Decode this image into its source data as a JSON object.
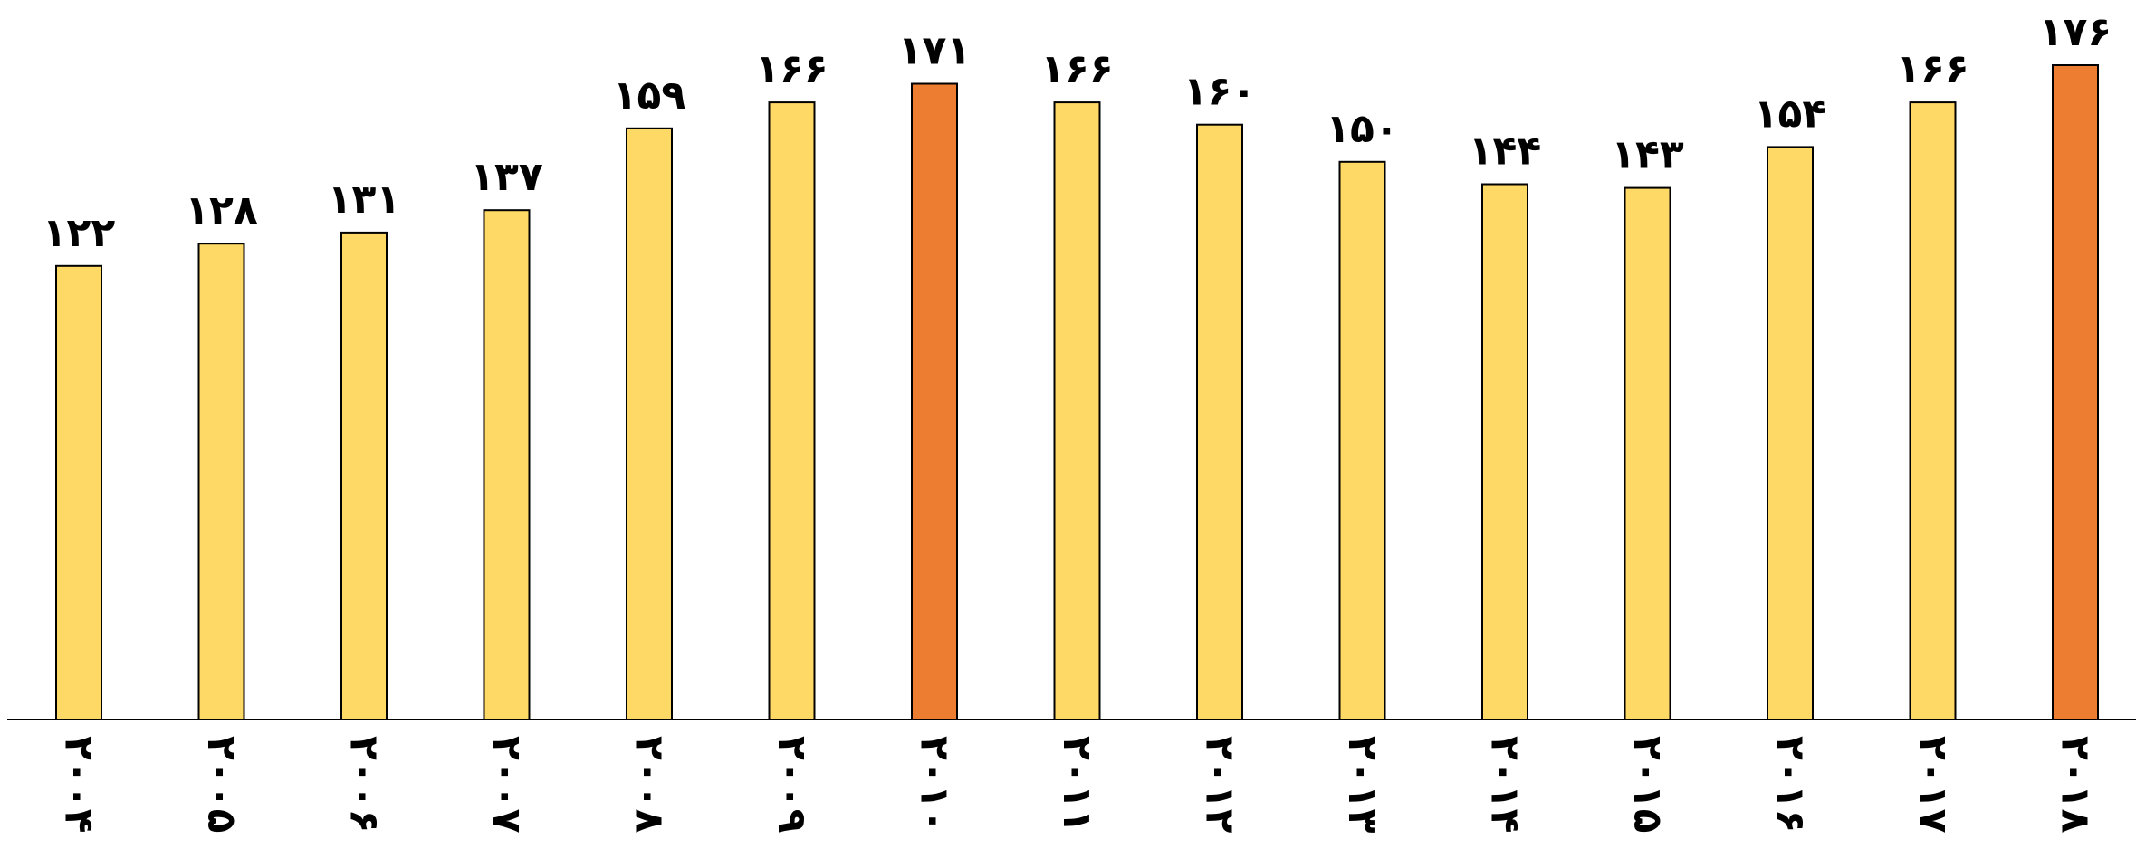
{
  "chart_data": {
    "type": "bar",
    "title": "",
    "xlabel": "",
    "ylabel": "",
    "ylim": [
      0,
      176
    ],
    "grid": false,
    "legend": "none",
    "categories": [
      "۲۰۰۴",
      "۲۰۰۵",
      "۲۰۰۶",
      "۲۰۰۷",
      "۲۰۰۸",
      "۲۰۰۹",
      "۲۰۱۰",
      "۲۰۱۱",
      "۲۰۱۲",
      "۲۰۱۳",
      "۲۰۱۴",
      "۲۰۱۵",
      "۲۰۱۶",
      "۲۰۱۷",
      "۲۰۱۸"
    ],
    "values": [
      122,
      128,
      131,
      137,
      159,
      166,
      171,
      166,
      160,
      150,
      144,
      143,
      154,
      166,
      176
    ],
    "value_labels": [
      "۱۲۲",
      "۱۲۸",
      "۱۳۱",
      "۱۳۷",
      "۱۵۹",
      "۱۶۶",
      "۱۷۱",
      "۱۶۶",
      "۱۶۰",
      "۱۵۰",
      "۱۴۴",
      "۱۴۳",
      "۱۵۴",
      "۱۶۶",
      "۱۷۶"
    ],
    "colors": {
      "default_bar": "#FFD966",
      "highlight_bar": "#ED7D31",
      "axis": "#000000"
    },
    "highlighted_categories": [
      "۲۰۱۰",
      "۲۰۱۸"
    ]
  }
}
